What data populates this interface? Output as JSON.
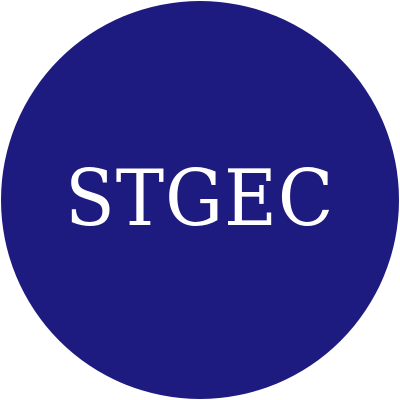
{
  "logo": {
    "text": "STGEC",
    "background_color": "#1e1b80",
    "text_color": "#ffffff"
  }
}
